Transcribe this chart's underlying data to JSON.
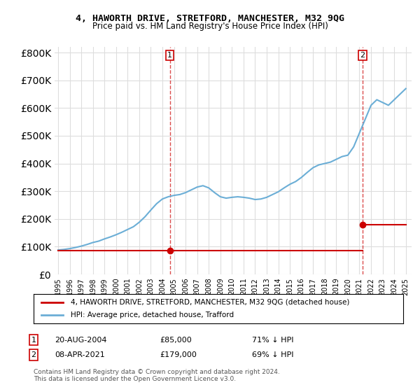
{
  "title": "4, HAWORTH DRIVE, STRETFORD, MANCHESTER, M32 9QG",
  "subtitle": "Price paid vs. HM Land Registry's House Price Index (HPI)",
  "ylabel_ticks": [
    "£0",
    "£100K",
    "£200K",
    "£300K",
    "£400K",
    "£500K",
    "£600K",
    "£700K",
    "£800K"
  ],
  "ytick_vals": [
    0,
    100000,
    200000,
    300000,
    400000,
    500000,
    600000,
    700000,
    800000
  ],
  "ylim": [
    0,
    820000
  ],
  "xlim_start": 1995.0,
  "xlim_end": 2025.5,
  "hpi_years": [
    1995.0,
    1995.5,
    1996.0,
    1996.5,
    1997.0,
    1997.5,
    1998.0,
    1998.5,
    1999.0,
    1999.5,
    2000.0,
    2000.5,
    2001.0,
    2001.5,
    2002.0,
    2002.5,
    2003.0,
    2003.5,
    2004.0,
    2004.5,
    2005.0,
    2005.5,
    2006.0,
    2006.5,
    2007.0,
    2007.5,
    2008.0,
    2008.5,
    2009.0,
    2009.5,
    2010.0,
    2010.5,
    2011.0,
    2011.5,
    2012.0,
    2012.5,
    2013.0,
    2013.5,
    2014.0,
    2014.5,
    2015.0,
    2015.5,
    2016.0,
    2016.5,
    2017.0,
    2017.5,
    2018.0,
    2018.5,
    2019.0,
    2019.5,
    2020.0,
    2020.5,
    2021.0,
    2021.5,
    2022.0,
    2022.5,
    2023.0,
    2023.5,
    2024.0,
    2024.5,
    2025.0
  ],
  "hpi_values": [
    88000,
    90000,
    93000,
    97000,
    102000,
    108000,
    115000,
    120000,
    128000,
    135000,
    143000,
    152000,
    162000,
    172000,
    188000,
    208000,
    232000,
    255000,
    272000,
    280000,
    285000,
    288000,
    295000,
    305000,
    315000,
    320000,
    312000,
    295000,
    280000,
    275000,
    278000,
    280000,
    278000,
    275000,
    270000,
    272000,
    278000,
    288000,
    298000,
    312000,
    325000,
    335000,
    350000,
    368000,
    385000,
    395000,
    400000,
    405000,
    415000,
    425000,
    430000,
    460000,
    510000,
    560000,
    610000,
    630000,
    620000,
    610000,
    630000,
    650000,
    670000
  ],
  "sale1_year": 2004.64,
  "sale1_price": 85000,
  "sale2_year": 2021.27,
  "sale2_price": 179000,
  "price_line_segments": [
    {
      "x": [
        1995.0,
        2004.64
      ],
      "y": [
        85000,
        85000
      ]
    },
    {
      "x": [
        2004.64,
        2021.27
      ],
      "y": [
        85000,
        85000
      ]
    },
    {
      "x": [
        2021.27,
        2025.0
      ],
      "y": [
        179000,
        179000
      ]
    }
  ],
  "hpi_color": "#6baed6",
  "price_color": "#cc0000",
  "marker_color": "#cc0000",
  "vline_color": "#cc0000",
  "grid_color": "#dddddd",
  "background_color": "#ffffff",
  "legend_label_price": "4, HAWORTH DRIVE, STRETFORD, MANCHESTER, M32 9QG (detached house)",
  "legend_label_hpi": "HPI: Average price, detached house, Trafford",
  "note1_label": "1",
  "note1_date": "20-AUG-2004",
  "note1_price": "£85,000",
  "note1_pct": "71% ↓ HPI",
  "note2_label": "2",
  "note2_date": "08-APR-2021",
  "note2_price": "£179,000",
  "note2_pct": "69% ↓ HPI",
  "footer": "Contains HM Land Registry data © Crown copyright and database right 2024.\nThis data is licensed under the Open Government Licence v3.0.",
  "xtick_years": [
    "1995",
    "1996",
    "1997",
    "1998",
    "1999",
    "2000",
    "2001",
    "2002",
    "2003",
    "2004",
    "2005",
    "2006",
    "2007",
    "2008",
    "2009",
    "2010",
    "2011",
    "2012",
    "2013",
    "2014",
    "2015",
    "2016",
    "2017",
    "2018",
    "2019",
    "2020",
    "2021",
    "2022",
    "2023",
    "2024",
    "2025"
  ]
}
